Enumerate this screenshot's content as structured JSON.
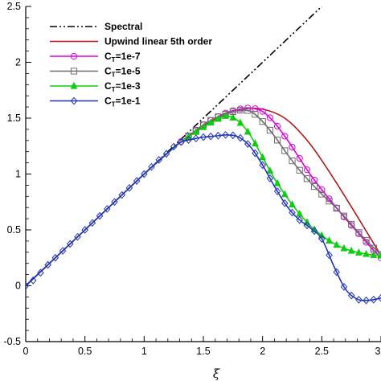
{
  "chart_data": {
    "type": "line",
    "title": "",
    "xlabel": "ξ",
    "ylabel": "",
    "xlim": [
      0,
      3.0
    ],
    "ylim": [
      -0.5,
      2.5
    ],
    "xticks": [
      0,
      0.5,
      1,
      1.5,
      2,
      2.5,
      3
    ],
    "xtick_labels": [
      "0",
      "0.5",
      "1",
      "1.5",
      "2",
      "2.5",
      "3"
    ],
    "yticks": [
      -0.5,
      0,
      0.5,
      1,
      1.5,
      2,
      2.5
    ],
    "ytick_labels": [
      "-0.5",
      "0",
      "0.5",
      "1",
      "1.5",
      "2",
      "2.5"
    ],
    "grid": false,
    "legend_position": "top-left",
    "series": [
      {
        "name": "Spectral",
        "color": "#000000",
        "marker": "none",
        "dash": "dash-dot-dot",
        "x": [
          0,
          2.5
        ],
        "y": [
          0,
          2.5
        ]
      },
      {
        "name": "Upwind linear 5th order",
        "color": "#b01818",
        "marker": "none",
        "dash": "solid",
        "x": [
          0,
          0.2,
          0.4,
          0.6,
          0.8,
          1.0,
          1.2,
          1.4,
          1.6,
          1.8,
          2.0,
          2.2,
          2.4,
          2.6,
          2.8,
          3.0
        ],
        "y": [
          0,
          0.2,
          0.4,
          0.6,
          0.8,
          1.0,
          1.19,
          1.36,
          1.49,
          1.575,
          1.58,
          1.49,
          1.27,
          0.96,
          0.62,
          0.27
        ]
      },
      {
        "name": "C_T=1e-7",
        "legend_main": "C",
        "legend_sub": "T",
        "legend_rest": "=1e-7",
        "color": "#dd00dd",
        "marker": "circle",
        "dash": "solid",
        "x": [
          0,
          0.2,
          0.4,
          0.6,
          0.8,
          1.0,
          1.2,
          1.3,
          1.4,
          1.5,
          1.6,
          1.7,
          1.8,
          1.9,
          2.0,
          2.1,
          2.2,
          2.3,
          2.4,
          2.5,
          2.6,
          2.7,
          2.8,
          2.9,
          3.0
        ],
        "y": [
          0,
          0.2,
          0.4,
          0.6,
          0.8,
          1.0,
          1.19,
          1.28,
          1.36,
          1.44,
          1.5,
          1.55,
          1.58,
          1.59,
          1.56,
          1.46,
          1.32,
          1.16,
          1.0,
          0.86,
          0.73,
          0.6,
          0.48,
          0.36,
          0.25
        ]
      },
      {
        "name": "C_T=1e-5",
        "legend_main": "C",
        "legend_sub": "T",
        "legend_rest": "=1e-5",
        "color": "#6e6e6e",
        "marker": "square",
        "dash": "solid",
        "x": [
          0,
          0.2,
          0.4,
          0.6,
          0.8,
          1.0,
          1.2,
          1.3,
          1.4,
          1.5,
          1.6,
          1.7,
          1.8,
          1.9,
          2.0,
          2.1,
          2.2,
          2.3,
          2.4,
          2.5,
          2.6,
          2.7,
          2.8,
          2.9,
          3.0
        ],
        "y": [
          0,
          0.2,
          0.4,
          0.6,
          0.8,
          1.0,
          1.19,
          1.28,
          1.36,
          1.44,
          1.5,
          1.54,
          1.57,
          1.56,
          1.47,
          1.34,
          1.19,
          1.05,
          0.93,
          0.82,
          0.72,
          0.61,
          0.49,
          0.38,
          0.28
        ]
      },
      {
        "name": "C_T=1e-3",
        "legend_main": "C",
        "legend_sub": "T",
        "legend_rest": "=1e-3",
        "color": "#11cc11",
        "marker": "triangle",
        "dash": "solid",
        "x": [
          0,
          0.2,
          0.4,
          0.6,
          0.8,
          1.0,
          1.2,
          1.3,
          1.4,
          1.5,
          1.6,
          1.7,
          1.8,
          1.9,
          2.0,
          2.1,
          2.2,
          2.3,
          2.4,
          2.5,
          2.6,
          2.7,
          2.8,
          2.9,
          3.0
        ],
        "y": [
          0,
          0.2,
          0.4,
          0.6,
          0.8,
          1.0,
          1.19,
          1.28,
          1.35,
          1.42,
          1.48,
          1.52,
          1.47,
          1.34,
          1.15,
          0.96,
          0.8,
          0.66,
          0.54,
          0.45,
          0.38,
          0.33,
          0.3,
          0.28,
          0.27
        ]
      },
      {
        "name": "C_T=1e-1",
        "legend_main": "C",
        "legend_sub": "T",
        "legend_rest": "=1e-1",
        "color": "#2233bb",
        "marker": "diamond",
        "dash": "solid",
        "x": [
          0,
          0.2,
          0.4,
          0.6,
          0.8,
          1.0,
          1.2,
          1.3,
          1.4,
          1.5,
          1.6,
          1.7,
          1.8,
          1.9,
          2.0,
          2.1,
          2.2,
          2.3,
          2.4,
          2.5,
          2.6,
          2.7,
          2.8,
          2.9,
          3.0
        ],
        "y": [
          0,
          0.2,
          0.4,
          0.6,
          0.8,
          1.0,
          1.19,
          1.28,
          1.31,
          1.33,
          1.34,
          1.35,
          1.33,
          1.24,
          1.08,
          0.89,
          0.72,
          0.6,
          0.52,
          0.42,
          0.18,
          -0.03,
          -0.12,
          -0.13,
          -0.11
        ]
      }
    ]
  }
}
